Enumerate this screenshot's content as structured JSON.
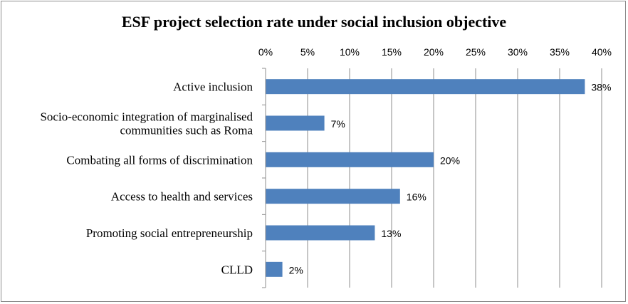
{
  "chart_data": {
    "type": "bar",
    "orientation": "horizontal",
    "title": "ESF project selection rate under social inclusion objective",
    "categories": [
      [
        "Active inclusion"
      ],
      [
        "Socio-economic integration of marginalised",
        "communities such as Roma"
      ],
      [
        "Combating all forms of discrimination"
      ],
      [
        "Access to health and services"
      ],
      [
        "Promoting social entrepreneurship"
      ],
      [
        "CLLD"
      ]
    ],
    "values": [
      0.38,
      0.07,
      0.2,
      0.16,
      0.13,
      0.02
    ],
    "data_labels": [
      "38%",
      "7%",
      "20%",
      "16%",
      "13%",
      "2%"
    ],
    "x_ticks": [
      "0%",
      "5%",
      "10%",
      "15%",
      "20%",
      "25%",
      "30%",
      "35%",
      "40%"
    ],
    "xlim": [
      0,
      0.4
    ],
    "x_axis_position": "top",
    "grid": true,
    "bar_color": "#4f81bd"
  }
}
